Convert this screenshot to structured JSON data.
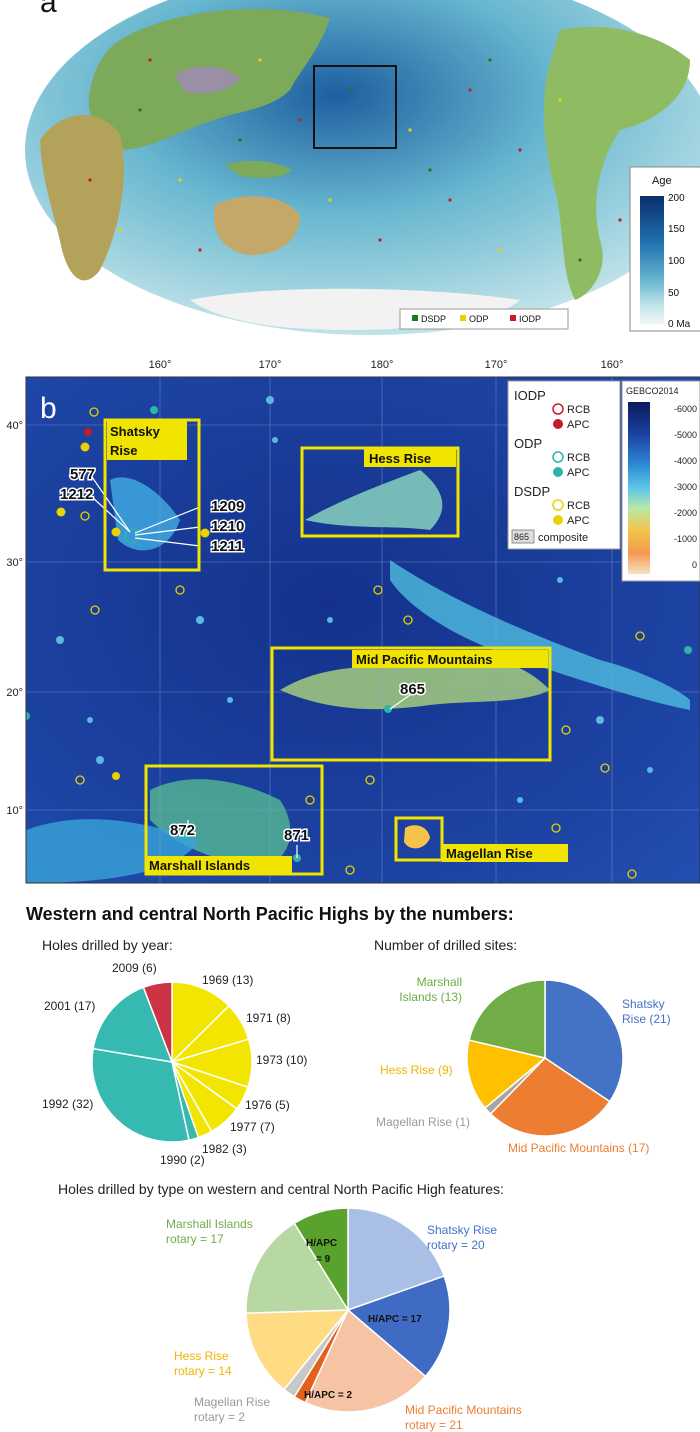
{
  "panel_a": {
    "label": "a",
    "colorbar": {
      "title": "Age",
      "ticks": [
        "200",
        "150",
        "100",
        "50",
        "0 Ma"
      ]
    },
    "legend": [
      {
        "label": "DSDP",
        "color": "#1f7a1f"
      },
      {
        "label": "ODP",
        "color": "#e8d200"
      },
      {
        "label": "IODP",
        "color": "#c21e2a"
      }
    ]
  },
  "panel_b": {
    "label": "b",
    "lon_labels": [
      "160°",
      "170°",
      "180°",
      "170°",
      "160°"
    ],
    "lat_labels": [
      "40°",
      "30°",
      "20°",
      "10°"
    ],
    "regions": {
      "shatsky": "Shatsky Rise",
      "hess": "Hess Rise",
      "mid_pacific": "Mid Pacific Mountains",
      "marshall": "Marshall Islands",
      "magellan": "Magellan Rise"
    },
    "site_labels": [
      "577",
      "1212",
      "1209",
      "1210",
      "1211",
      "865",
      "872",
      "871"
    ],
    "legend": {
      "groups": [
        {
          "name": "IODP",
          "rcb": "RCB",
          "apc": "APC",
          "color": "#c21e2a"
        },
        {
          "name": "ODP",
          "rcb": "RCB",
          "apc": "APC",
          "color": "#2fb3a8"
        },
        {
          "name": "DSDP",
          "rcb": "RCB",
          "apc": "APC",
          "color": "#e8d200"
        }
      ],
      "composite_box": "865",
      "composite_label": "composite"
    },
    "depth_scale": {
      "title": "GEBCO2014",
      "ticks": [
        "-6000",
        "-5000",
        "-4000",
        "-3000",
        "-2000",
        "-1000",
        "0"
      ]
    }
  },
  "numbers_title": "Western and central North Pacific Highs by the numbers:",
  "chart_data": [
    {
      "type": "pie",
      "title": "Holes drilled by year:",
      "slices": [
        {
          "label": "1969 (13)",
          "value": 13,
          "color": "#f2e600"
        },
        {
          "label": "1971 (8)",
          "value": 8,
          "color": "#f2e600"
        },
        {
          "label": "1973 (10)",
          "value": 10,
          "color": "#f2e600"
        },
        {
          "label": "1976 (5)",
          "value": 5,
          "color": "#f2e600"
        },
        {
          "label": "1977 (7)",
          "value": 7,
          "color": "#f2e600"
        },
        {
          "label": "1982 (3)",
          "value": 3,
          "color": "#f2e600"
        },
        {
          "label": "1990 (2)",
          "value": 2,
          "color": "#35b9b0"
        },
        {
          "label": "1992 (32)",
          "value": 32,
          "color": "#35b9b0"
        },
        {
          "label": "2001 (17)",
          "value": 17,
          "color": "#35b9b0"
        },
        {
          "label": "2009 (6)",
          "value": 6,
          "color": "#cc3344"
        }
      ]
    },
    {
      "type": "pie",
      "title": "Number of drilled sites:",
      "slices": [
        {
          "label": "Shatsky Rise (21)",
          "value": 21,
          "color": "#4472c4"
        },
        {
          "label": "Mid Pacific Mountains (17)",
          "value": 17,
          "color": "#ed7d31"
        },
        {
          "label": "Magellan Rise (1)",
          "value": 1,
          "color": "#a5a5a5"
        },
        {
          "label": "Hess Rise (9)",
          "value": 9,
          "color": "#ffc000"
        },
        {
          "label": "Marshall Islands (13)",
          "value": 13,
          "color": "#70ad47"
        }
      ]
    },
    {
      "type": "pie",
      "title": "Holes drilled by type on western and central North Pacific High features:",
      "slices": [
        {
          "label": "Shatsky Rise rotary = 20",
          "value": 20,
          "color": "#a9bfe6"
        },
        {
          "label": "H/APC = 17",
          "value": 17,
          "color": "#3f6bc4"
        },
        {
          "label": "Mid Pacific Mountains rotary = 21",
          "value": 21,
          "color": "#f6c4a4"
        },
        {
          "label": "H/APC = 2",
          "value": 2,
          "color": "#e0621c"
        },
        {
          "label": "Magellan Rise rotary = 2",
          "value": 2,
          "color": "#c8c8c8"
        },
        {
          "label": "Hess Rise rotary = 14",
          "value": 14,
          "color": "#ffdc84"
        },
        {
          "label": "Marshall Islands rotary = 17",
          "value": 17,
          "color": "#b7d8a2"
        },
        {
          "label": "H/APC = 9",
          "value": 9,
          "color": "#58a22d"
        }
      ]
    }
  ],
  "pie_labels": {
    "year": [
      {
        "text": "1969 (13)",
        "color": "#222"
      },
      {
        "text": "1971 (8)",
        "color": "#222"
      },
      {
        "text": "1973 (10)",
        "color": "#222"
      },
      {
        "text": "1976 (5)",
        "color": "#222"
      },
      {
        "text": "1977 (7)",
        "color": "#222"
      },
      {
        "text": "1982 (3)",
        "color": "#222"
      },
      {
        "text": "1990 (2)",
        "color": "#222"
      },
      {
        "text": "1992 (32)",
        "color": "#222"
      },
      {
        "text": "2001 (17)",
        "color": "#222"
      },
      {
        "text": "2009 (6)",
        "color": "#222"
      }
    ],
    "sites": [
      {
        "lines": [
          "Shatsky",
          "Rise (21)"
        ],
        "color": "#4472c4"
      },
      {
        "lines": [
          "Mid Pacific Mountains (17)"
        ],
        "color": "#ed7d31"
      },
      {
        "lines": [
          "Magellan Rise (1)"
        ],
        "color": "#9a9a9a"
      },
      {
        "lines": [
          "Hess Rise (9)"
        ],
        "color": "#f0b400"
      },
      {
        "lines": [
          "Marshall",
          "Islands (13)"
        ],
        "color": "#70ad47"
      }
    ],
    "types": [
      {
        "lines": [
          "Shatsky Rise",
          "rotary = 20"
        ],
        "color": "#4472c4"
      },
      {
        "lines": [
          "Mid Pacific Mountains",
          "rotary = 21"
        ],
        "color": "#ed7d31"
      },
      {
        "lines": [
          "Magellan Rise",
          "rotary = 2"
        ],
        "color": "#9a9a9a"
      },
      {
        "lines": [
          "Hess Rise",
          "rotary = 14"
        ],
        "color": "#f0b400"
      },
      {
        "lines": [
          "Marshall Islands",
          "rotary = 17"
        ],
        "color": "#70ad47"
      }
    ],
    "types_inner": [
      "H/APC",
      "= 9",
      "H/APC = 17",
      "H/APC = 2"
    ]
  }
}
